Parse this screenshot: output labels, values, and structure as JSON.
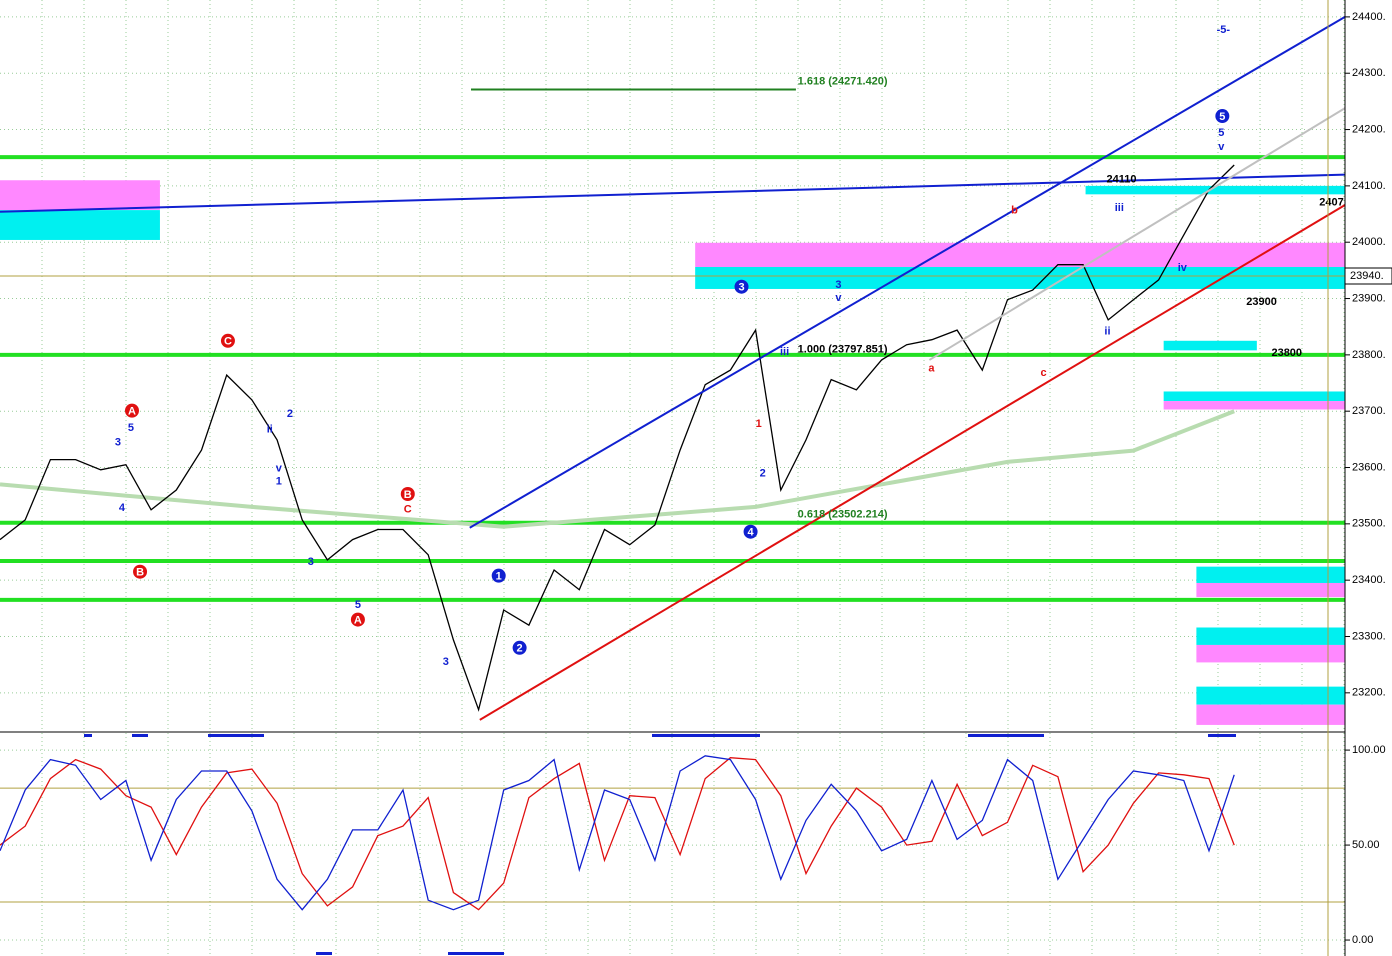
{
  "chart_data": [
    {
      "type": "line",
      "xlim": [
        0,
        53.4
      ],
      "ylim": [
        23134,
        24430
      ],
      "yticks": [
        {
          "value": 24400,
          "label": "24400."
        },
        {
          "value": 24300,
          "label": "24300."
        },
        {
          "value": 24200,
          "label": "24200."
        },
        {
          "value": 24100,
          "label": "24100."
        },
        {
          "value": 24000,
          "label": "24000."
        },
        {
          "value": 23900,
          "label": "23900."
        },
        {
          "value": 23800,
          "label": "23800."
        },
        {
          "value": 23700,
          "label": "23700."
        },
        {
          "value": 23600,
          "label": "23600."
        },
        {
          "value": 23500,
          "label": "23500."
        },
        {
          "value": 23400,
          "label": "23400."
        },
        {
          "value": 23300,
          "label": "23300."
        },
        {
          "value": 23200,
          "label": "23200."
        }
      ],
      "price_marker": {
        "value": 23940,
        "label": "23940."
      },
      "grid": true,
      "series": [
        {
          "color": "#b8dcb0",
          "x": [
            0,
            10,
            20,
            30,
            40,
            45,
            49
          ],
          "values": [
            23570,
            23530,
            23495,
            23530,
            23610,
            23630,
            23700
          ]
        },
        {
          "color": "#000000",
          "values": [
            23472,
            23507,
            23614,
            23614,
            23596,
            23605,
            23525,
            23560,
            23631,
            23764,
            23720,
            23649,
            23507,
            23436,
            23472,
            23490,
            23490,
            23445,
            23294,
            23170,
            23347,
            23320,
            23418,
            23383,
            23490,
            23463,
            23498,
            23631,
            23747,
            23773,
            23844,
            23560,
            23649,
            23756,
            23738,
            23791,
            23818,
            23827,
            23844,
            23773,
            23898,
            23915,
            23960,
            23960,
            23862,
            23898,
            23933,
            24013,
            24093,
            24137
          ]
        }
      ],
      "levels": [
        {
          "value": 24151,
          "color": "#22e022"
        },
        {
          "value": 23800,
          "color": "#22e022"
        },
        {
          "value": 23502,
          "color": "#22e022"
        },
        {
          "value": 23434,
          "color": "#22e022"
        },
        {
          "value": 23365,
          "color": "#22e022"
        },
        {
          "value": 23940,
          "color": "#b0a040"
        }
      ],
      "trendlines": [
        {
          "x": [
            18.65,
            53.4
          ],
          "y": [
            23493,
            24400
          ],
          "color": "#1020d0"
        },
        {
          "x": [
            19.05,
            53.4
          ],
          "y": [
            23152,
            24066
          ],
          "color": "#e01010"
        },
        {
          "x": [
            0,
            53.4
          ],
          "y": [
            24054,
            24120
          ],
          "color": "#1020d0"
        },
        {
          "x": [
            36.9,
            53.4
          ],
          "y": [
            23791,
            24238
          ],
          "color": "#c0c0c0"
        },
        {
          "x": [
            18.7,
            31.6
          ],
          "y": [
            24271,
            24271
          ],
          "color": "#208020"
        }
      ],
      "zones": [
        {
          "x": [
            0,
            6.35
          ],
          "y": [
            24110,
            24057
          ],
          "color": "#ff88ff"
        },
        {
          "x": [
            0,
            6.35
          ],
          "y": [
            24057,
            24004
          ],
          "color": "#00f0f0"
        },
        {
          "x": [
            27.6,
            53.4
          ],
          "y": [
            23999,
            23956
          ],
          "color": "#ff88ff"
        },
        {
          "x": [
            27.6,
            53.4
          ],
          "y": [
            23956,
            23917
          ],
          "color": "#00f0f0"
        },
        {
          "x": [
            43.1,
            53.4
          ],
          "y": [
            24100,
            24085
          ],
          "color": "#00f0f0"
        },
        {
          "x": [
            46.2,
            49.9
          ],
          "y": [
            23825,
            23808
          ],
          "color": "#00f0f0"
        },
        {
          "x": [
            46.2,
            53.4
          ],
          "y": [
            23735,
            23718
          ],
          "color": "#00f0f0"
        },
        {
          "x": [
            46.2,
            53.4
          ],
          "y": [
            23718,
            23703
          ],
          "color": "#ff88ff"
        },
        {
          "x": [
            47.5,
            53.4
          ],
          "y": [
            23424,
            23395
          ],
          "color": "#00f0f0"
        },
        {
          "x": [
            47.5,
            53.4
          ],
          "y": [
            23395,
            23370
          ],
          "color": "#ff88ff"
        },
        {
          "x": [
            47.5,
            53.4
          ],
          "y": [
            23316,
            23285
          ],
          "color": "#00f0f0"
        },
        {
          "x": [
            47.5,
            53.4
          ],
          "y": [
            23285,
            23254
          ],
          "color": "#ff88ff"
        },
        {
          "x": [
            47.5,
            53.4
          ],
          "y": [
            23211,
            23179
          ],
          "color": "#00f0f0"
        },
        {
          "x": [
            47.5,
            53.4
          ],
          "y": [
            23179,
            23143
          ],
          "color": "#ff88ff"
        }
      ],
      "annotations": [
        {
          "text": "1.618 (24271.420)",
          "x": 31.67,
          "y": 24285,
          "color": "#208020",
          "circled": false
        },
        {
          "text": "0.618 (23502.214)",
          "x": 31.67,
          "y": 23516,
          "color": "#208020",
          "circled": false
        },
        {
          "text": "1.000 (23797.851)",
          "x": 31.67,
          "y": 23809,
          "color": "#000000",
          "circled": false
        },
        {
          "text": "24110",
          "x": 43.93,
          "y": 24111,
          "color": "#000000",
          "circled": false
        },
        {
          "text": "23900",
          "x": 49.48,
          "y": 23894,
          "color": "#000000",
          "circled": false
        },
        {
          "text": "23800",
          "x": 50.48,
          "y": 23803,
          "color": "#000000",
          "circled": false
        },
        {
          "text": "2407",
          "x": 52.38,
          "y": 24070,
          "color": "#000000",
          "circled": false
        },
        {
          "text": "-5-",
          "x": 48.57,
          "y": 24377,
          "color": "#1020d0",
          "circled": false
        },
        {
          "text": "3",
          "x": 29.44,
          "y": 23921,
          "color": "#1020d0",
          "circled": true
        },
        {
          "text": "4",
          "x": 29.8,
          "y": 23486,
          "color": "#1020d0",
          "circled": true
        },
        {
          "text": "1",
          "x": 19.8,
          "y": 23408,
          "color": "#1020d0",
          "circled": true
        },
        {
          "text": "2",
          "x": 20.63,
          "y": 23280,
          "color": "#1020d0",
          "circled": true
        },
        {
          "text": "5",
          "x": 48.53,
          "y": 24224,
          "color": "#1020d0",
          "circled": true
        },
        {
          "text": "C",
          "x": 9.05,
          "y": 23825,
          "color": "#e01010",
          "circled": true
        },
        {
          "text": "A",
          "x": 5.24,
          "y": 23701,
          "color": "#e01010",
          "circled": true
        },
        {
          "text": "B",
          "x": 5.56,
          "y": 23415,
          "color": "#e01010",
          "circled": true
        },
        {
          "text": "B",
          "x": 16.19,
          "y": 23553,
          "color": "#e01010",
          "circled": true
        },
        {
          "text": "A",
          "x": 14.21,
          "y": 23330,
          "color": "#e01010",
          "circled": true
        },
        {
          "text": "a",
          "x": 36.98,
          "y": 23776,
          "color": "#e01010",
          "circled": false
        },
        {
          "text": "b",
          "x": 40.28,
          "y": 24056,
          "color": "#e01010",
          "circled": false
        },
        {
          "text": "c",
          "x": 41.43,
          "y": 23768,
          "color": "#e01010",
          "circled": false
        },
        {
          "text": "C",
          "x": 16.19,
          "y": 23525,
          "color": "#e01010",
          "circled": false
        },
        {
          "text": "1",
          "x": 30.12,
          "y": 23677,
          "color": "#e01010",
          "circled": false
        },
        {
          "text": "iii",
          "x": 44.44,
          "y": 24061,
          "color": "#1020d0",
          "circled": false
        },
        {
          "text": "iv",
          "x": 46.94,
          "y": 23954,
          "color": "#1020d0",
          "circled": false
        },
        {
          "text": "ii",
          "x": 43.97,
          "y": 23841,
          "color": "#1020d0",
          "circled": false
        },
        {
          "text": "3",
          "x": 33.29,
          "y": 23924,
          "color": "#1020d0",
          "circled": false
        },
        {
          "text": "v",
          "x": 33.29,
          "y": 23901,
          "color": "#1020d0",
          "circled": false
        },
        {
          "text": "5",
          "x": 48.49,
          "y": 24194,
          "color": "#1020d0",
          "circled": false
        },
        {
          "text": "v",
          "x": 48.49,
          "y": 24169,
          "color": "#1020d0",
          "circled": false
        },
        {
          "text": "3",
          "x": 4.68,
          "y": 23644,
          "color": "#1020d0",
          "circled": false
        },
        {
          "text": "5",
          "x": 5.2,
          "y": 23670,
          "color": "#1020d0",
          "circled": false
        },
        {
          "text": "4",
          "x": 4.84,
          "y": 23528,
          "color": "#1020d0",
          "circled": false
        },
        {
          "text": "ii",
          "x": 10.71,
          "y": 23667,
          "color": "#1020d0",
          "circled": false
        },
        {
          "text": "v",
          "x": 11.07,
          "y": 23598,
          "color": "#1020d0",
          "circled": false
        },
        {
          "text": "1",
          "x": 11.07,
          "y": 23575,
          "color": "#1020d0",
          "circled": false
        },
        {
          "text": "2",
          "x": 11.51,
          "y": 23695,
          "color": "#1020d0",
          "circled": false
        },
        {
          "text": "3",
          "x": 12.34,
          "y": 23432,
          "color": "#1020d0",
          "circled": false
        },
        {
          "text": "5",
          "x": 14.21,
          "y": 23356,
          "color": "#1020d0",
          "circled": false
        },
        {
          "text": "3",
          "x": 17.7,
          "y": 23255,
          "color": "#1020d0",
          "circled": false
        },
        {
          "text": "2",
          "x": 30.28,
          "y": 23589,
          "color": "#1020d0",
          "circled": false
        },
        {
          "text": "iii",
          "x": 31.15,
          "y": 23805,
          "color": "#1020d0",
          "circled": false
        }
      ]
    },
    {
      "type": "line",
      "xlim": [
        0,
        53.4
      ],
      "ylim": [
        -8.4,
        109
      ],
      "yticks": [
        {
          "value": 100,
          "label": "100.00"
        },
        {
          "value": 50,
          "label": "50.00"
        },
        {
          "value": 0,
          "label": "0.00"
        }
      ],
      "grid": true,
      "series": [
        {
          "color": "#e01010",
          "values": [
            50,
            60,
            85,
            95,
            90,
            76,
            70,
            45,
            70,
            88,
            90,
            72,
            35,
            18,
            28,
            55,
            60,
            75,
            25,
            16,
            30,
            75,
            85,
            93,
            42,
            76,
            75,
            45,
            85,
            96,
            95,
            76,
            35,
            60,
            80,
            70,
            50,
            52,
            82,
            55,
            62,
            92,
            86,
            36,
            50,
            72,
            88,
            87,
            85,
            50
          ]
        },
        {
          "color": "#1020d0",
          "values": [
            47,
            79,
            95,
            92,
            74,
            84,
            42,
            74,
            89,
            89,
            68,
            32,
            16,
            32,
            58,
            58,
            79,
            21,
            16,
            21,
            79,
            84,
            95,
            37,
            79,
            74,
            42,
            89,
            97,
            95,
            74,
            32,
            63,
            82,
            68,
            47,
            53,
            84,
            53,
            63,
            95,
            84,
            32,
            53,
            74,
            89,
            87,
            84,
            47,
            87
          ]
        }
      ],
      "levels": [
        {
          "value": 80,
          "color": "#b0a040"
        },
        {
          "value": 20,
          "color": "#b0a040"
        }
      ]
    }
  ]
}
